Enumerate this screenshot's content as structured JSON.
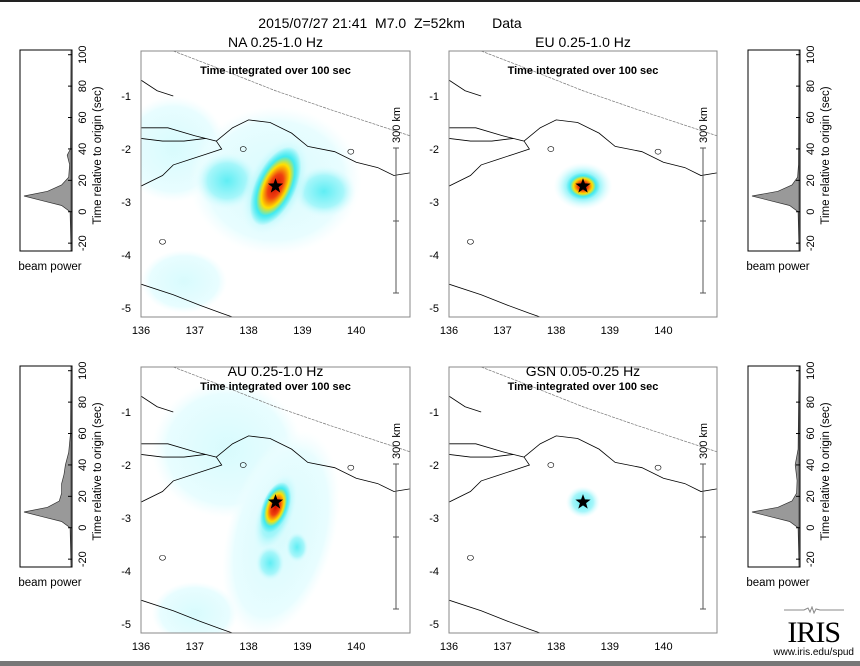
{
  "header": {
    "title": "2015/07/27 21:41  M7.0  Z=52km       Data"
  },
  "logo": {
    "text": "IRIS",
    "url": "www.iris.edu/spud"
  },
  "colors": {
    "low": "#e6fdff",
    "mid": "#3fe7ef",
    "high": "#ffe200",
    "peak": "#e8200a",
    "star": "#000000"
  },
  "chart_data": [
    {
      "type": "heatmap",
      "title": "NA  0.25-1.0 Hz",
      "note": "Time integrated over 100 sec",
      "scale_label": "300 km",
      "xticks": [
        136,
        137,
        138,
        139,
        140
      ],
      "yticks": [
        -1,
        -2,
        -3,
        -4,
        -5
      ],
      "xlim": [
        136,
        141
      ],
      "ylim": [
        -5.17,
        -0.15
      ],
      "epicenter": [
        138.5,
        -2.7
      ]
    },
    {
      "type": "heatmap",
      "title": "EU  0.25-1.0 Hz",
      "note": "Time integrated over 100 sec",
      "scale_label": "300 km",
      "xticks": [
        136,
        137,
        138,
        139,
        140
      ],
      "yticks": [
        -1,
        -2,
        -3,
        -4,
        -5
      ],
      "xlim": [
        136,
        141
      ],
      "ylim": [
        -5.17,
        -0.15
      ],
      "epicenter": [
        138.5,
        -2.7
      ]
    },
    {
      "type": "heatmap",
      "title": "AU  0.25-1.0 Hz",
      "note": "Time integrated over 100 sec",
      "scale_label": "300 km",
      "xticks": [
        136,
        137,
        138,
        139,
        140
      ],
      "yticks": [
        -1,
        -2,
        -3,
        -4,
        -5
      ],
      "xlim": [
        136,
        141
      ],
      "ylim": [
        -5.17,
        -0.15
      ],
      "epicenter": [
        138.5,
        -2.7
      ]
    },
    {
      "type": "heatmap",
      "title": "GSN  0.05-0.25 Hz",
      "note": "Time integrated over 100 sec",
      "scale_label": "300 km",
      "xticks": [
        136,
        137,
        138,
        139,
        140
      ],
      "yticks": [
        -1,
        -2,
        -3,
        -4,
        -5
      ],
      "xlim": [
        136,
        141
      ],
      "ylim": [
        -5.17,
        -0.15
      ],
      "epicenter": [
        138.5,
        -2.7
      ]
    }
  ],
  "beam_power": [
    {
      "xlabel": "beam power",
      "ylabel": "Time relative to origin (sec)",
      "yticks": [
        100,
        80,
        60,
        40,
        20,
        0,
        -20
      ],
      "ylim": [
        -25,
        103
      ],
      "t": [
        -25,
        0,
        4,
        7,
        10,
        13,
        17,
        22,
        30,
        36,
        40,
        103
      ],
      "power": [
        0,
        0.02,
        0.2,
        0.6,
        1.0,
        0.5,
        0.2,
        0.05,
        0.03,
        0.08,
        0.01,
        0
      ]
    },
    {
      "xlabel": "beam power",
      "ylabel": "Time relative to origin (sec)",
      "yticks": [
        100,
        80,
        60,
        40,
        20,
        0,
        -20
      ],
      "ylim": [
        -25,
        103
      ],
      "t": [
        -25,
        0,
        4,
        7,
        10,
        13,
        17,
        22,
        30,
        103
      ],
      "power": [
        0,
        0.02,
        0.2,
        0.6,
        1.0,
        0.45,
        0.15,
        0.03,
        0.01,
        0
      ]
    },
    {
      "xlabel": "beam power",
      "ylabel": "Time relative to origin (sec)",
      "yticks": [
        100,
        80,
        60,
        40,
        20,
        0,
        -20
      ],
      "ylim": [
        -25,
        103
      ],
      "t": [
        -25,
        0,
        4,
        7,
        10,
        13,
        17,
        22,
        28,
        34,
        40,
        48,
        60,
        103
      ],
      "power": [
        0,
        0.02,
        0.2,
        0.6,
        1.0,
        0.5,
        0.25,
        0.2,
        0.2,
        0.15,
        0.12,
        0.05,
        0.01,
        0
      ]
    },
    {
      "xlabel": "beam power",
      "ylabel": "Time relative to origin (sec)",
      "yticks": [
        100,
        80,
        60,
        40,
        20,
        0,
        -20
      ],
      "ylim": [
        -25,
        103
      ],
      "t": [
        -25,
        0,
        4,
        7,
        10,
        13,
        17,
        22,
        30,
        40,
        50,
        103
      ],
      "power": [
        0,
        0.02,
        0.2,
        0.6,
        1.0,
        0.45,
        0.15,
        0.05,
        0.04,
        0.08,
        0.02,
        0
      ]
    }
  ]
}
